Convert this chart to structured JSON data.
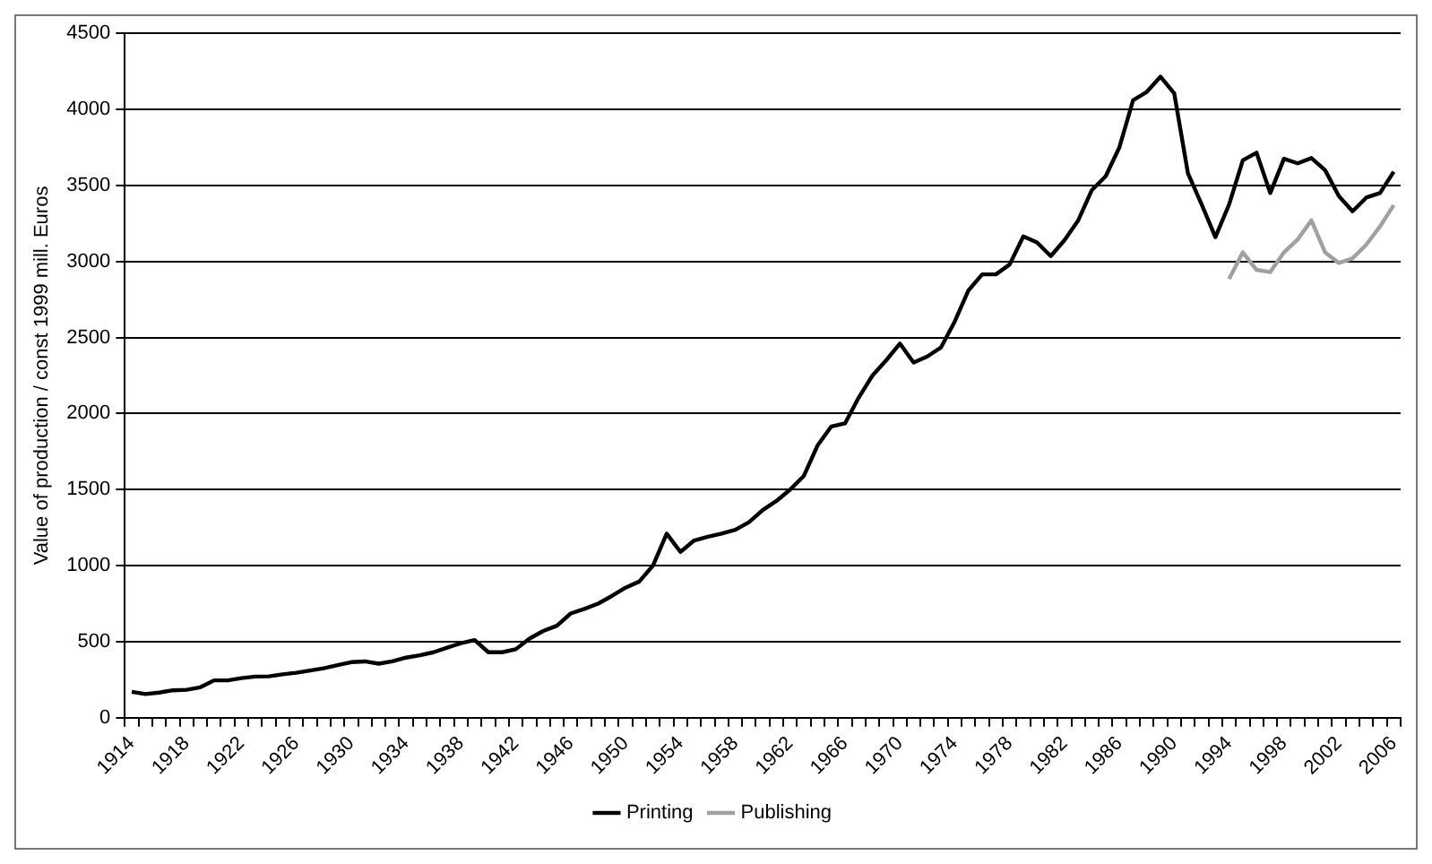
{
  "chart_data": {
    "type": "line",
    "ylabel": "Value of production / const 1999 mill. Euros",
    "categories": [
      "1914",
      null,
      null,
      null,
      "1918",
      null,
      null,
      null,
      "1922",
      null,
      null,
      null,
      "1926",
      null,
      null,
      null,
      "1930",
      null,
      null,
      null,
      "1934",
      null,
      null,
      null,
      "1938",
      null,
      null,
      null,
      "1942",
      null,
      null,
      null,
      "1946",
      null,
      null,
      null,
      "1950",
      null,
      null,
      null,
      "1954",
      null,
      null,
      null,
      "1958",
      null,
      null,
      null,
      "1962",
      null,
      null,
      null,
      "1966",
      null,
      null,
      null,
      "1970",
      null,
      null,
      null,
      "1974",
      null,
      null,
      null,
      "1978",
      null,
      null,
      null,
      "1982",
      null,
      null,
      null,
      "1986",
      null,
      null,
      null,
      "1990",
      null,
      null,
      null,
      "1994",
      null,
      null,
      null,
      "1998",
      null,
      null,
      null,
      "2002",
      null,
      null,
      null,
      "2006"
    ],
    "series": [
      {
        "name": "Printing",
        "color": "#000000",
        "values": [
          170,
          155,
          165,
          180,
          183,
          200,
          245,
          245,
          260,
          270,
          272,
          285,
          295,
          310,
          325,
          345,
          365,
          370,
          355,
          370,
          395,
          410,
          430,
          460,
          490,
          510,
          430,
          430,
          450,
          520,
          570,
          605,
          685,
          715,
          750,
          800,
          855,
          895,
          1000,
          1210,
          1090,
          1165,
          1190,
          1210,
          1235,
          1285,
          1365,
          1425,
          1500,
          1590,
          1790,
          1915,
          1935,
          2105,
          2250,
          2350,
          2460,
          2335,
          2375,
          2435,
          2605,
          2810,
          2915,
          2915,
          2980,
          3165,
          3125,
          3035,
          3140,
          3270,
          3470,
          3560,
          3750,
          4060,
          4115,
          4215,
          4105,
          3580,
          3375,
          3160,
          3375,
          3665,
          3715,
          3450,
          3675,
          3645,
          3680,
          3600,
          3430,
          3330,
          3420,
          3450,
          3590
        ]
      },
      {
        "name": "Publishing",
        "color": "#a0a0a0",
        "values": [
          null,
          null,
          null,
          null,
          null,
          null,
          null,
          null,
          null,
          null,
          null,
          null,
          null,
          null,
          null,
          null,
          null,
          null,
          null,
          null,
          null,
          null,
          null,
          null,
          null,
          null,
          null,
          null,
          null,
          null,
          null,
          null,
          null,
          null,
          null,
          null,
          null,
          null,
          null,
          null,
          null,
          null,
          null,
          null,
          null,
          null,
          null,
          null,
          null,
          null,
          null,
          null,
          null,
          null,
          null,
          null,
          null,
          null,
          null,
          null,
          null,
          null,
          null,
          null,
          null,
          null,
          null,
          null,
          null,
          null,
          null,
          null,
          null,
          null,
          null,
          null,
          null,
          null,
          null,
          null,
          2885,
          3060,
          2945,
          2930,
          3060,
          3145,
          3270,
          3060,
          2990,
          3020,
          3110,
          3230,
          3370
        ]
      }
    ],
    "ylim": [
      0,
      4500
    ],
    "yticks": [
      0,
      500,
      1000,
      1500,
      2000,
      2500,
      3000,
      3500,
      4000,
      4500
    ],
    "grid": "y",
    "legend": "bottom",
    "marker": "none",
    "line_style": "solid"
  }
}
